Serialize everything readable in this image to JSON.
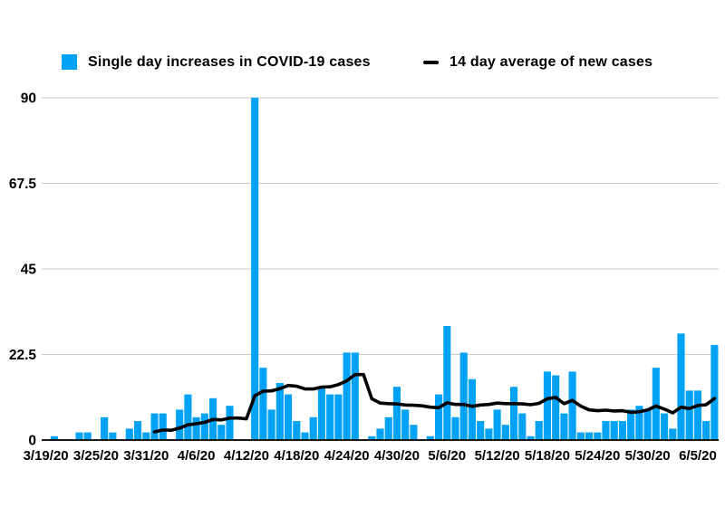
{
  "legend": {
    "bars_label": "Single day increases in COVID-19 cases",
    "line_label": "14 day average of new cases"
  },
  "colors": {
    "bar": "#00A2F6",
    "line": "#000000",
    "gridline": "#C9C9C9",
    "axis": "#1A1A1A",
    "text": "#000000",
    "background": "#FFFFFF"
  },
  "chart_data": {
    "type": "bar",
    "title": "",
    "xlabel": "",
    "ylabel": "",
    "ylim": [
      0,
      90
    ],
    "y_ticks": [
      0,
      22.5,
      45,
      67.5,
      90
    ],
    "y_tick_labels": [
      "0",
      "22.5",
      "45",
      "67.5",
      "90"
    ],
    "grid": "horizontal",
    "legend_position": "top",
    "x_tick_labels": [
      "3/19/20",
      "3/25/20",
      "3/31/20",
      "4/6/20",
      "4/12/20",
      "4/18/20",
      "4/24/20",
      "4/30/20",
      "5/6/20",
      "5/12/20",
      "5/18/20",
      "5/24/20",
      "5/30/20",
      "6/5/20"
    ],
    "x_tick_every": 6,
    "categories": [
      "3/19/20",
      "3/20/20",
      "3/21/20",
      "3/22/20",
      "3/23/20",
      "3/24/20",
      "3/25/20",
      "3/26/20",
      "3/27/20",
      "3/28/20",
      "3/29/20",
      "3/30/20",
      "3/31/20",
      "4/1/20",
      "4/2/20",
      "4/3/20",
      "4/4/20",
      "4/5/20",
      "4/6/20",
      "4/7/20",
      "4/8/20",
      "4/9/20",
      "4/10/20",
      "4/11/20",
      "4/12/20",
      "4/13/20",
      "4/14/20",
      "4/15/20",
      "4/16/20",
      "4/17/20",
      "4/18/20",
      "4/19/20",
      "4/20/20",
      "4/21/20",
      "4/22/20",
      "4/23/20",
      "4/24/20",
      "4/25/20",
      "4/26/20",
      "4/27/20",
      "4/28/20",
      "4/29/20",
      "4/30/20",
      "5/1/20",
      "5/2/20",
      "5/3/20",
      "5/4/20",
      "5/5/20",
      "5/6/20",
      "5/7/20",
      "5/8/20",
      "5/9/20",
      "5/10/20",
      "5/11/20",
      "5/12/20",
      "5/13/20",
      "5/14/20",
      "5/15/20",
      "5/16/20",
      "5/17/20",
      "5/18/20",
      "5/19/20",
      "5/20/20",
      "5/21/20",
      "5/22/20",
      "5/23/20",
      "5/24/20",
      "5/25/20",
      "5/26/20",
      "5/27/20",
      "5/28/20",
      "5/29/20",
      "5/30/20",
      "5/31/20",
      "6/1/20",
      "6/2/20",
      "6/3/20",
      "6/4/20",
      "6/5/20",
      "6/6/20",
      "6/7/20"
    ],
    "series": [
      {
        "name": "Single day increases in COVID-19 cases",
        "type": "bar",
        "values": [
          0,
          1,
          0,
          0,
          2,
          2,
          0,
          6,
          2,
          0,
          3,
          5,
          2,
          7,
          7,
          0,
          8,
          12,
          6,
          7,
          11,
          4,
          9,
          0,
          0,
          90,
          19,
          8,
          15,
          12,
          5,
          2,
          6,
          14,
          12,
          12,
          23,
          23,
          0,
          1,
          3,
          6,
          14,
          8,
          4,
          0,
          1,
          12,
          30,
          6,
          23,
          16,
          5,
          3,
          8,
          4,
          14,
          7,
          1,
          5,
          18,
          17,
          7,
          18,
          2,
          2,
          2,
          5,
          5,
          5,
          8,
          9,
          8,
          19,
          7,
          3,
          28,
          13,
          13,
          5,
          25
        ]
      },
      {
        "name": "14 day average of new cases",
        "type": "line",
        "derivation": "trailing 14-day mean of the bar series, plotted from the 14th day onward"
      }
    ]
  }
}
